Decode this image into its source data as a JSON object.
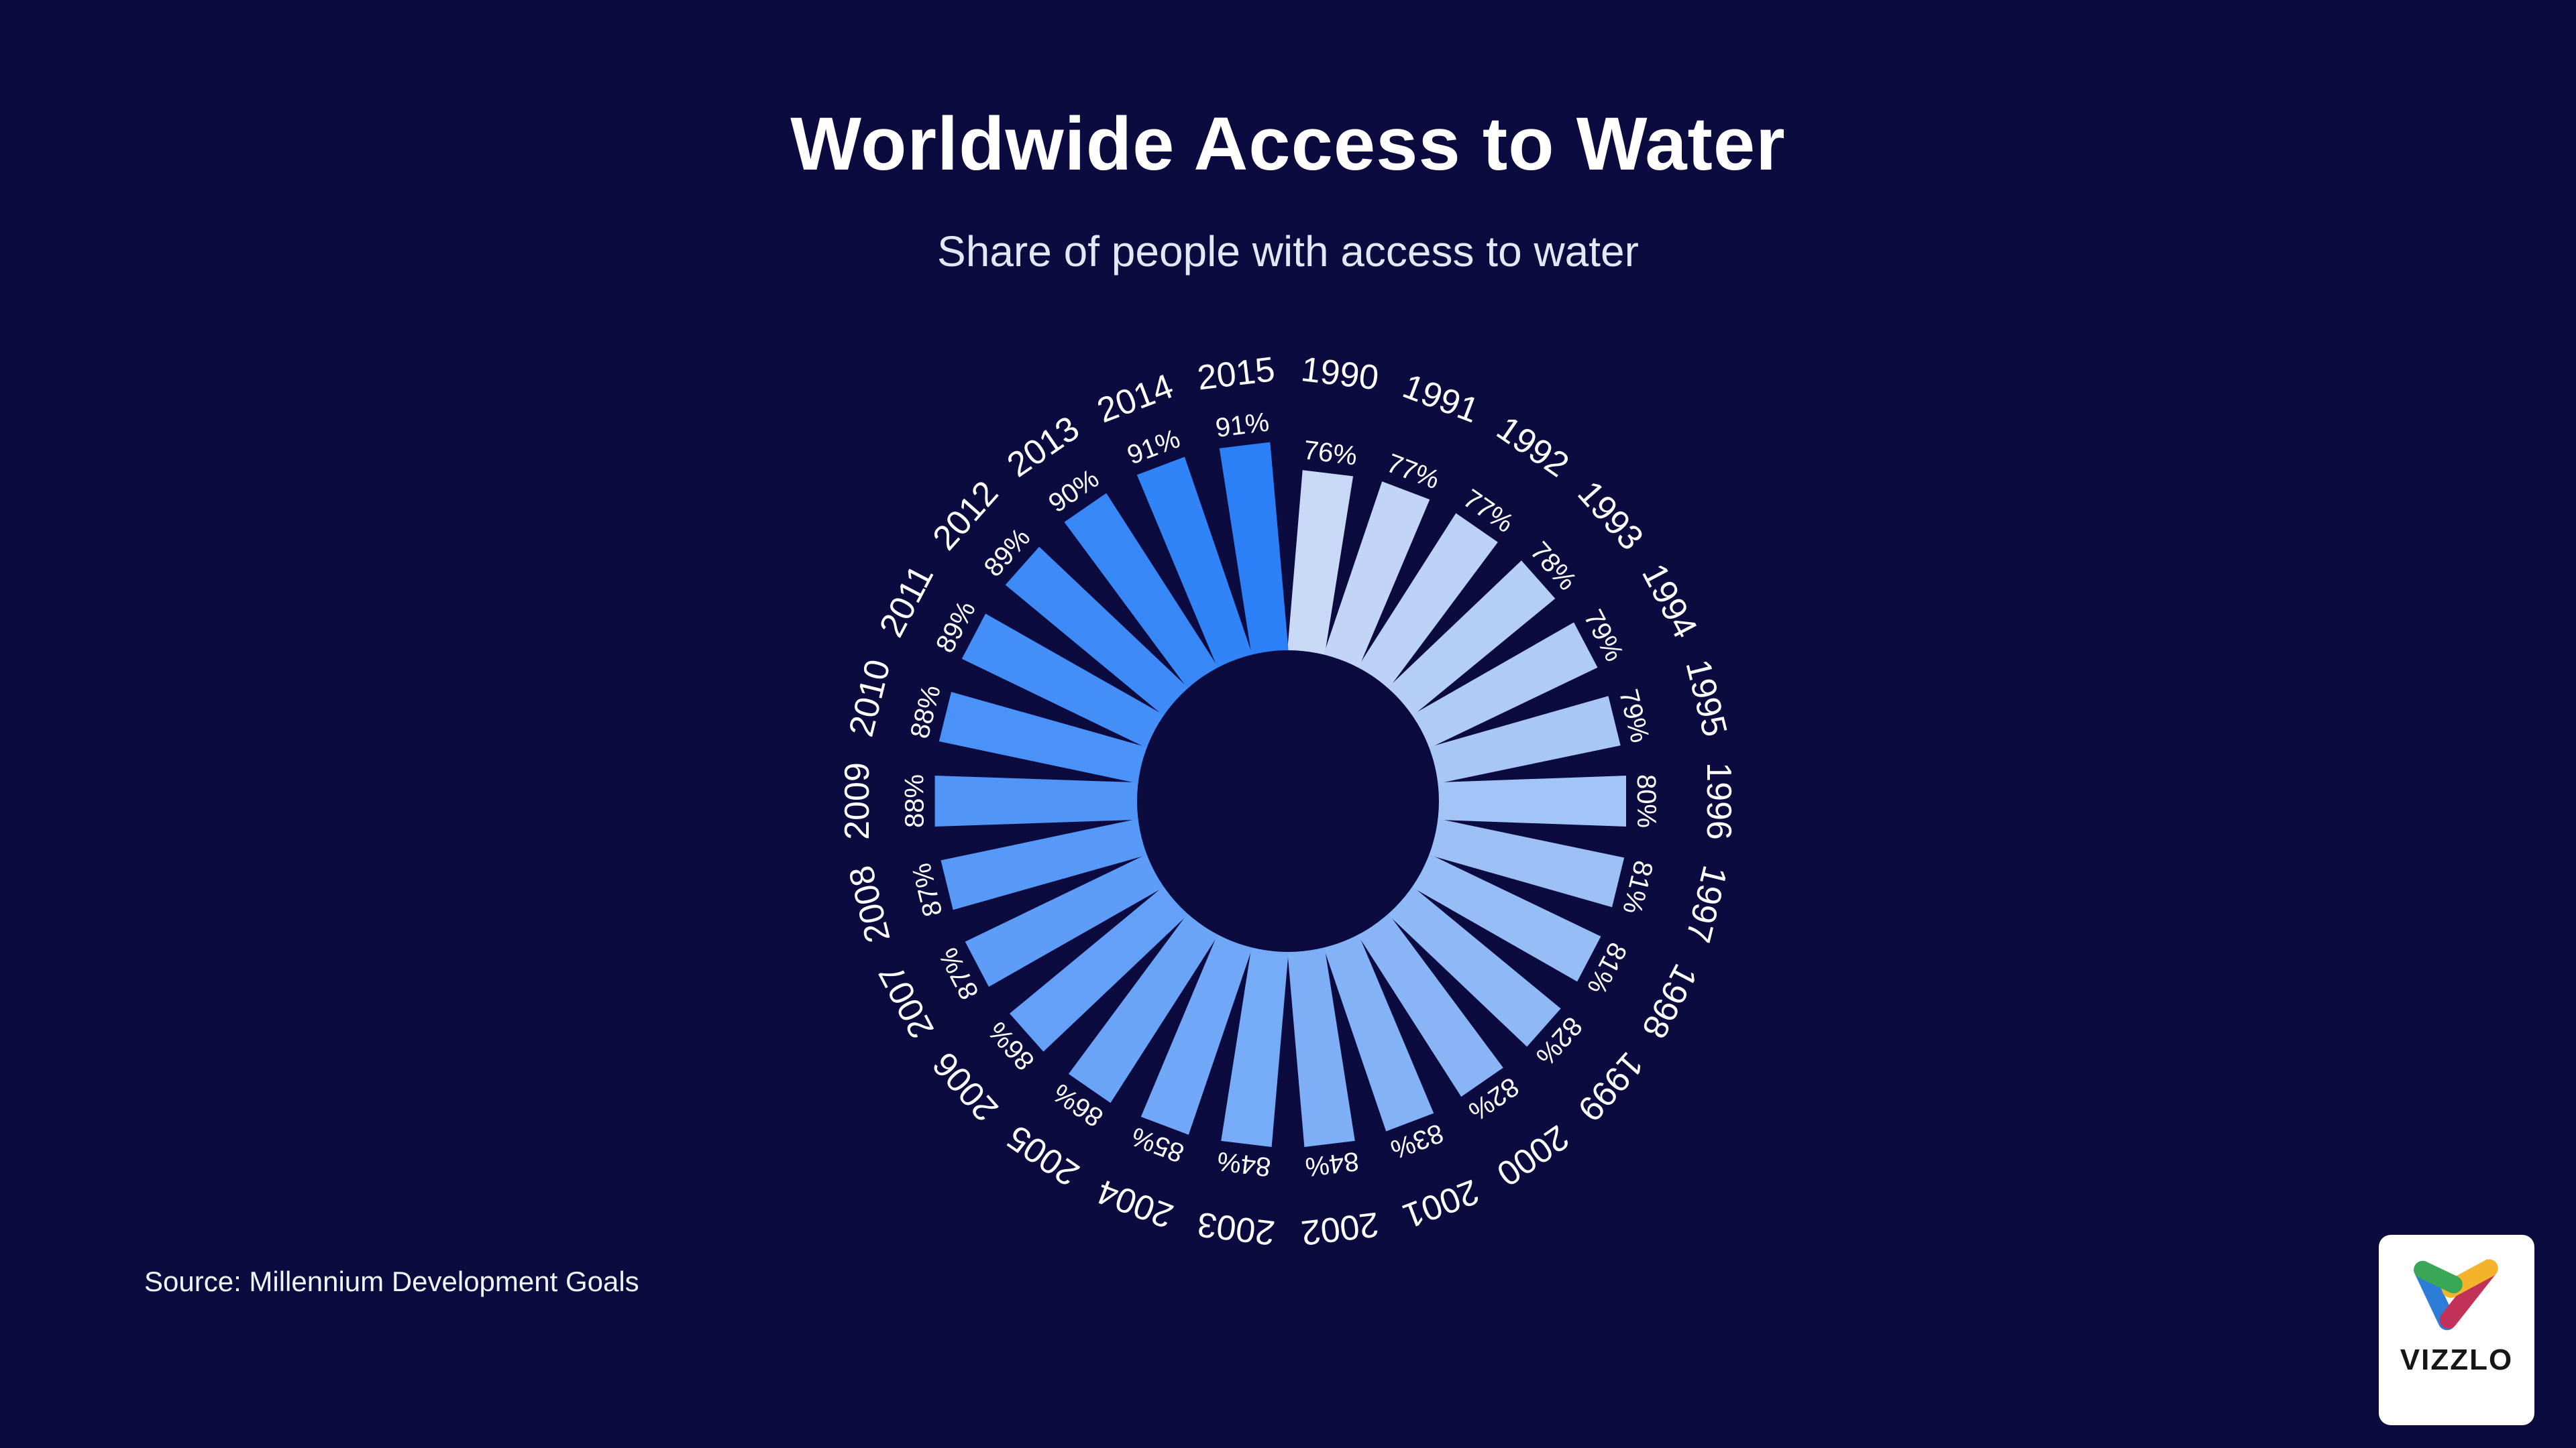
{
  "chart_data": {
    "type": "bar",
    "variant": "radial",
    "title": "Worldwide Access to Water",
    "subtitle": "Share of people with access to water",
    "source": "Source: Millennium Development Goals",
    "unit": "%",
    "categories": [
      "1990",
      "1991",
      "1992",
      "1993",
      "1994",
      "1995",
      "1996",
      "1997",
      "1998",
      "1999",
      "2000",
      "2001",
      "2002",
      "2003",
      "2004",
      "2005",
      "2006",
      "2007",
      "2008",
      "2009",
      "2010",
      "2011",
      "2012",
      "2013",
      "2014",
      "2015"
    ],
    "values": [
      76,
      77,
      77,
      78,
      79,
      79,
      80,
      81,
      81,
      82,
      82,
      83,
      84,
      84,
      85,
      86,
      86,
      87,
      87,
      88,
      88,
      89,
      89,
      90,
      91,
      91
    ],
    "axis": {
      "min": 0,
      "max": 100
    },
    "grid": false,
    "legend": "none",
    "direction": "clockwise-from-top",
    "colors": {
      "background": "#0c0b40",
      "bar_start": "#c8d9f6",
      "bar_end": "#2b80f7",
      "label": "#ffffff"
    }
  },
  "branding": {
    "name": "VIZZLO",
    "card_bg": "#ffffff",
    "text_color": "#161616",
    "logo_colors": {
      "green": "#3aa757",
      "yellow": "#f3b32a",
      "blue": "#2d7cd8",
      "red": "#c23157"
    }
  }
}
